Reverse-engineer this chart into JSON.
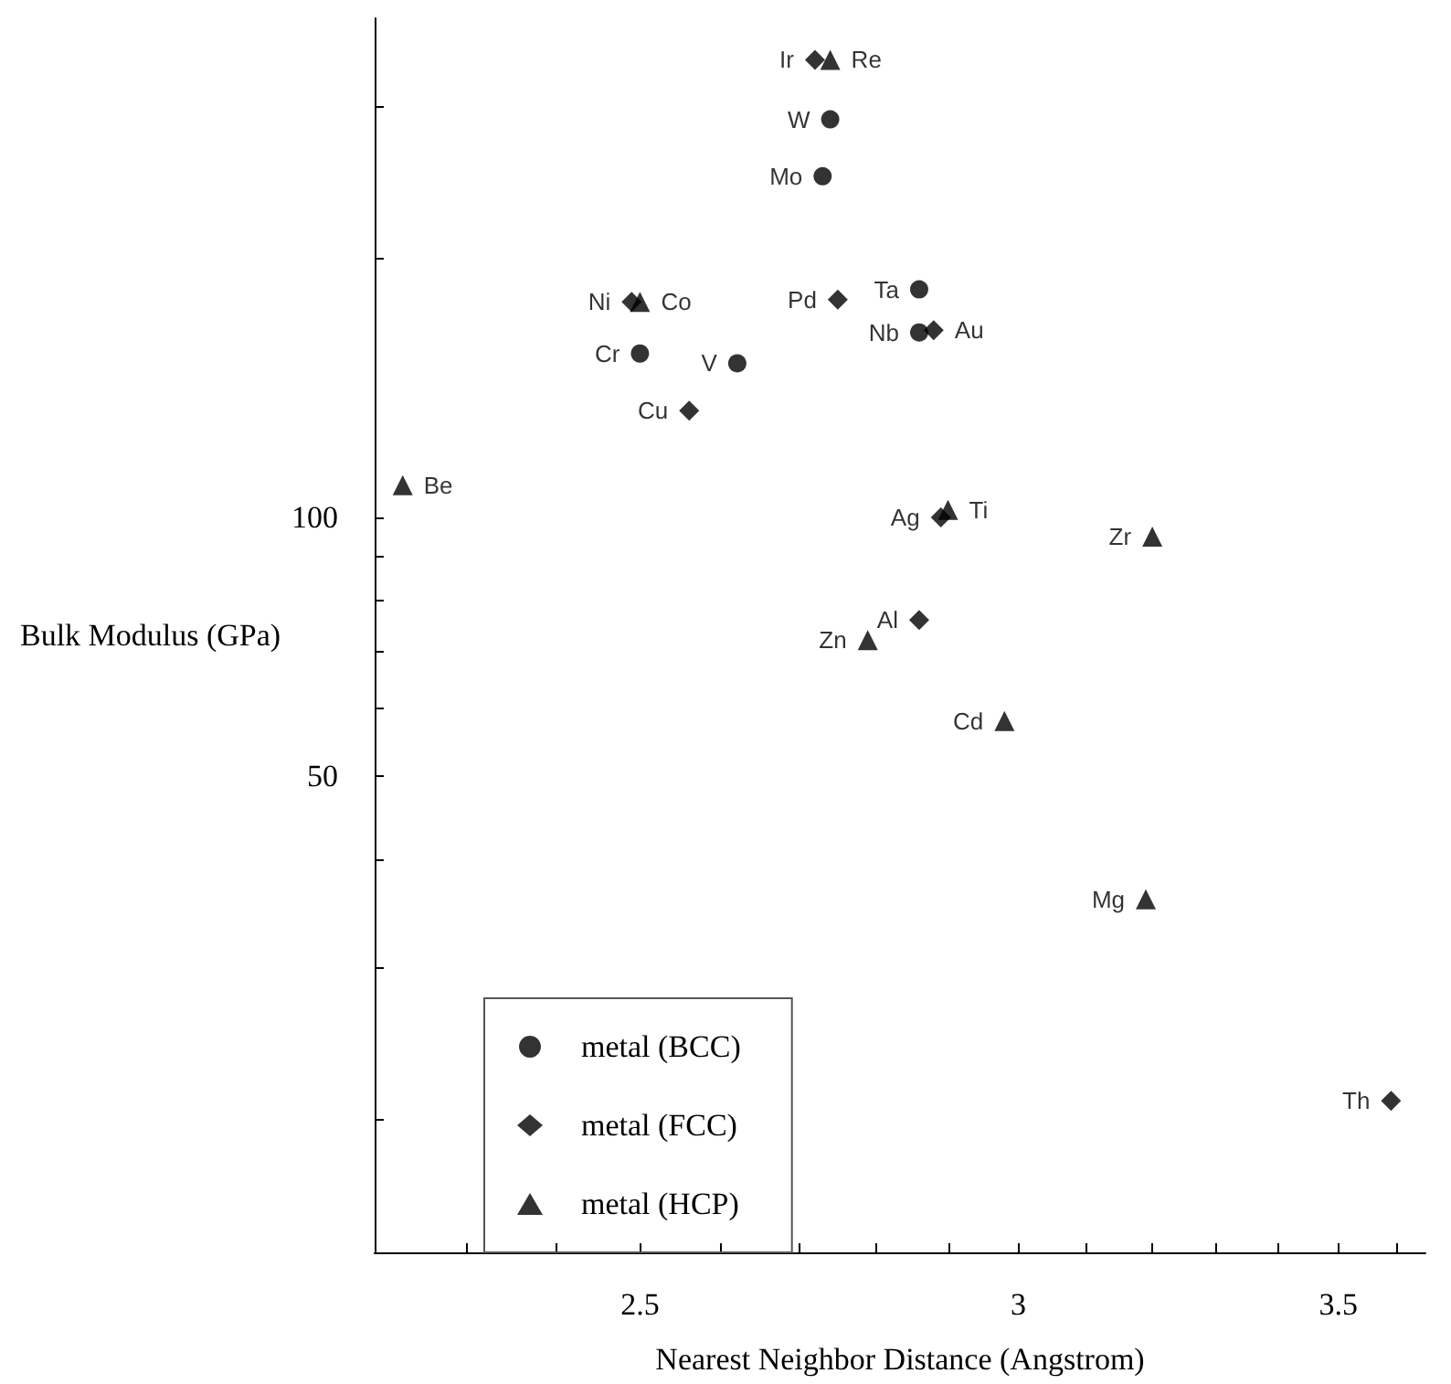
{
  "chart_data": {
    "type": "scatter",
    "xlabel": "Nearest Neighbor Distance (Angstrom)",
    "ylabel": "Bulk Modulus (GPa)",
    "log": "xy",
    "xlim": [
      2.2,
      3.65
    ],
    "xticks": [
      {
        "value": 2.3,
        "label": null
      },
      {
        "value": 2.4,
        "label": null
      },
      2.5,
      {
        "value": 2.6,
        "label": null
      },
      {
        "value": 2.7,
        "label": null
      },
      {
        "value": 2.8,
        "label": null
      },
      {
        "value": 2.9,
        "label": null
      },
      3,
      {
        "value": 3.1,
        "label": null
      },
      {
        "value": 3.2,
        "label": null
      },
      {
        "value": 3.3,
        "label": null
      },
      {
        "value": 3.4,
        "label": null
      },
      3.5,
      {
        "value": 3.6,
        "label": null
      }
    ],
    "ylim": [
      14,
      380
    ],
    "yticks": [
      {
        "value": 20,
        "label": null
      },
      {
        "value": 30,
        "label": null
      },
      {
        "value": 40,
        "label": null
      },
      50,
      {
        "value": 60,
        "label": null
      },
      {
        "value": 70,
        "label": null
      },
      {
        "value": 80,
        "label": null
      },
      {
        "value": 90,
        "label": null
      },
      100,
      {
        "value": 200,
        "label": null
      },
      {
        "value": 300,
        "label": null
      }
    ],
    "grid": false,
    "legend": "bottom left",
    "series": [
      {
        "name": "metal (BCC)",
        "color": "#000000",
        "marker": "circle",
        "x": [
          2.74,
          2.73,
          2.86,
          2.86,
          2.5,
          2.62
        ],
        "values": [
          290,
          249,
          184,
          164,
          155,
          151
        ],
        "value_labels": [
          "W",
          "Mo",
          "Ta",
          "Nb",
          "Cr",
          "V"
        ]
      },
      {
        "name": "metal (FCC)",
        "color": "#000000",
        "marker": "diamond",
        "x": [
          2.72,
          2.75,
          2.88,
          2.49,
          2.56,
          2.89,
          2.86,
          3.59
        ],
        "values": [
          340,
          179,
          165,
          178,
          133,
          100,
          76,
          21
        ],
        "value_labels": [
          "Ir",
          "Pd",
          "Au",
          "Ni",
          "Cu",
          "Ag",
          "Al",
          "Th"
        ]
      },
      {
        "name": "metal (HCP)",
        "color": "#000000",
        "marker": "triangle",
        "x": [
          2.74,
          2.5,
          2.23,
          2.9,
          3.2,
          2.79,
          2.98,
          3.19
        ],
        "values": [
          340,
          178,
          109,
          102,
          95,
          72,
          58,
          36
        ],
        "value_labels": [
          "Re",
          "Co",
          "Be",
          "Ti",
          "Zr",
          "Zn",
          "Cd",
          "Mg"
        ]
      }
    ]
  }
}
